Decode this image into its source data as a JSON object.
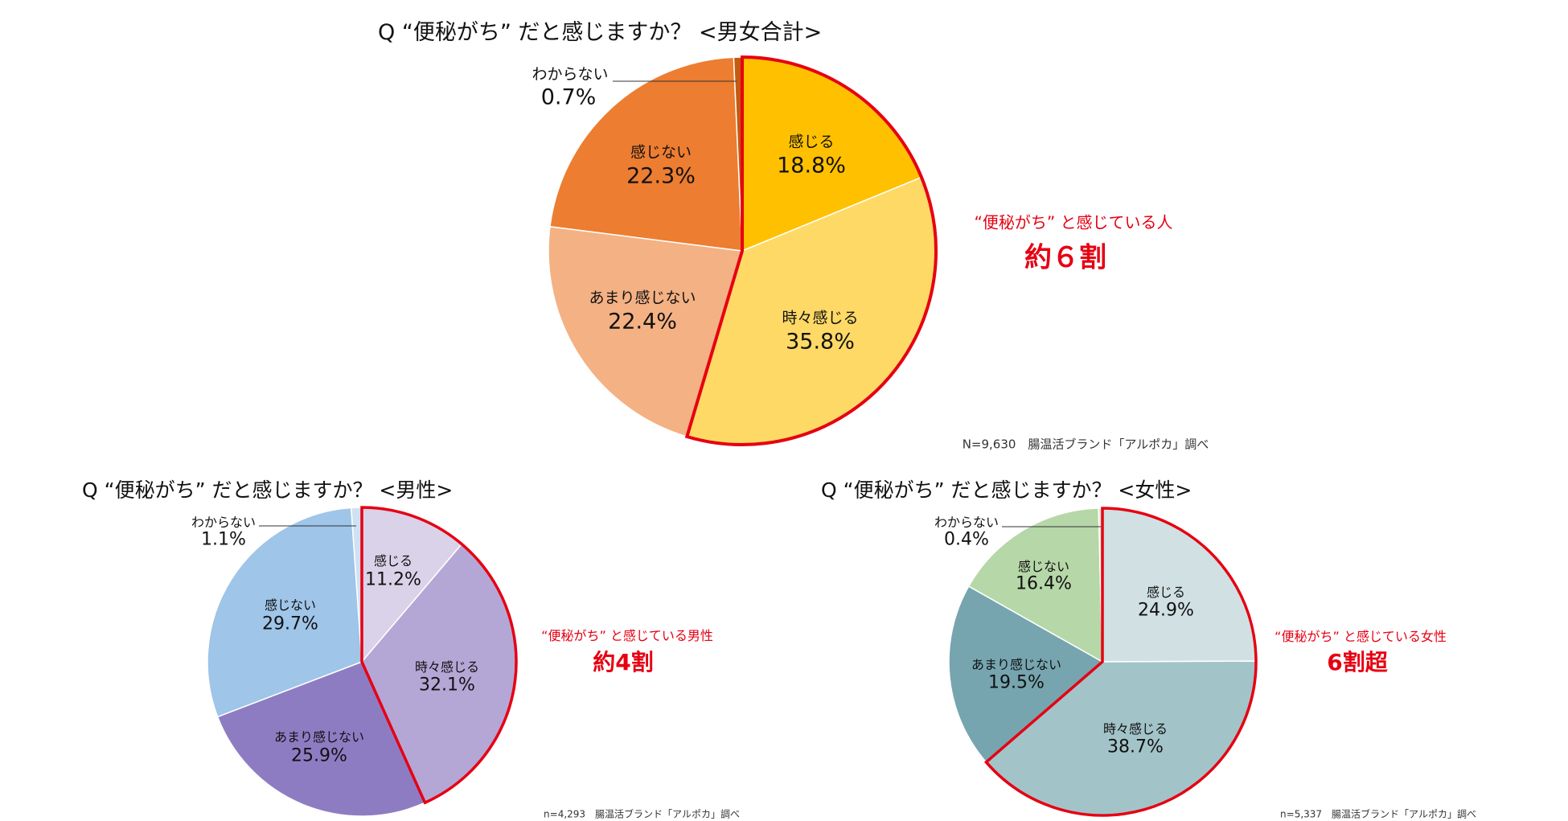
{
  "chart_data": [
    {
      "type": "pie",
      "title": "Q “便秘がち” だと感じますか？ <男女合計>",
      "categories": [
        "感じる",
        "時々感じる",
        "あまり感じない",
        "感じない",
        "わからない"
      ],
      "values": [
        18.8,
        35.8,
        22.4,
        22.3,
        0.7
      ],
      "labels": [
        "18.8%",
        "35.8%",
        "22.4%",
        "22.3%",
        "0.7%"
      ],
      "colors": [
        "#FFC000",
        "#FFD966",
        "#F4B183",
        "#ED7D31",
        "#C55A11"
      ],
      "highlight": {
        "slices": [
          0,
          1
        ],
        "outline_color": "#E60012"
      },
      "annotation": "“便秘がち” と感じている人",
      "annotation_value": "約６割",
      "source": "N=9,630　腸温活ブランド「アルポカ」調べ"
    },
    {
      "type": "pie",
      "title": "Q “便秘がち” だと感じますか？ <男性>",
      "categories": [
        "感じる",
        "時々感じる",
        "あまり感じない",
        "感じない",
        "わからない"
      ],
      "values": [
        11.2,
        32.1,
        25.9,
        29.7,
        1.1
      ],
      "labels": [
        "11.2%",
        "32.1%",
        "25.9%",
        "29.7%",
        "1.1%"
      ],
      "colors": [
        "#D9D2E9",
        "#B4A7D6",
        "#8E7CC3",
        "#9FC5E8",
        "#CFE2F3"
      ],
      "highlight": {
        "slices": [
          0,
          1
        ],
        "outline_color": "#E60012"
      },
      "annotation": "“便秘がち” と感じている男性",
      "annotation_value": "約4割",
      "source": "n=4,293　腸温活ブランド「アルポカ」調べ"
    },
    {
      "type": "pie",
      "title": "Q “便秘がち” だと感じますか？ <女性>",
      "categories": [
        "感じる",
        "時々感じる",
        "あまり感じない",
        "感じない",
        "わからない"
      ],
      "values": [
        24.9,
        38.7,
        19.5,
        16.4,
        0.4
      ],
      "labels": [
        "24.9%",
        "38.7%",
        "19.5%",
        "16.4%",
        "0.4%"
      ],
      "colors": [
        "#D0E0E3",
        "#A2C4C9",
        "#76A5AF",
        "#B6D7A8",
        "#D9EAD3"
      ],
      "highlight": {
        "slices": [
          0,
          1
        ],
        "outline_color": "#E60012"
      },
      "annotation": "“便秘がち” と感じている女性",
      "annotation_value": "6割超",
      "source": "n=5,337　腸温活ブランド「アルポカ」調べ"
    }
  ]
}
